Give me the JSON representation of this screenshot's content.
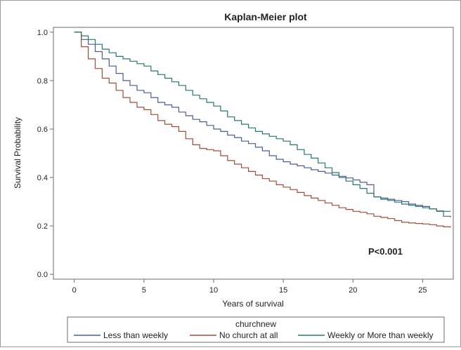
{
  "chart_data": {
    "type": "line",
    "title": "Kaplan-Meier plot",
    "xlabel": "Years of survival",
    "ylabel": "Survival Probability",
    "xlim": [
      -1.5,
      27.2
    ],
    "ylim": [
      -0.02,
      1.02
    ],
    "xticks": [
      0,
      5,
      10,
      15,
      20,
      25
    ],
    "yticks": [
      0.0,
      0.2,
      0.4,
      0.6,
      0.8,
      1.0
    ],
    "xtick_labels": [
      "0",
      "5",
      "10",
      "15",
      "20",
      "25"
    ],
    "ytick_labels": [
      "0.0",
      "0.2",
      "0.4",
      "0.6",
      "0.8",
      "1.0"
    ],
    "step": true,
    "annotation": "P<0.001",
    "legend_title": "churchnew",
    "legend_position": "bottom",
    "series": [
      {
        "name": "Less than weekly",
        "color": "#4a5aa8",
        "x": [
          0,
          0.5,
          1,
          1.5,
          2,
          2.5,
          3,
          3.5,
          4,
          4.5,
          5,
          5.5,
          6,
          6.5,
          7,
          7.5,
          8,
          8.5,
          9,
          9.5,
          10,
          10.5,
          11,
          11.5,
          12,
          12.5,
          13,
          13.5,
          14,
          14.5,
          15,
          15.5,
          16,
          16.5,
          17,
          17.5,
          18,
          18.5,
          19,
          19.5,
          20,
          20.5,
          21,
          21.5,
          22,
          22.5,
          23,
          23.5,
          24,
          24.5,
          25,
          25.5,
          26,
          26.5,
          27
        ],
        "y": [
          1.0,
          0.97,
          0.95,
          0.92,
          0.89,
          0.86,
          0.83,
          0.8,
          0.78,
          0.76,
          0.75,
          0.73,
          0.71,
          0.7,
          0.69,
          0.67,
          0.655,
          0.64,
          0.63,
          0.615,
          0.6,
          0.59,
          0.575,
          0.565,
          0.55,
          0.54,
          0.525,
          0.51,
          0.49,
          0.475,
          0.465,
          0.455,
          0.448,
          0.44,
          0.432,
          0.425,
          0.418,
          0.41,
          0.405,
          0.398,
          0.39,
          0.38,
          0.37,
          0.32,
          0.315,
          0.31,
          0.305,
          0.3,
          0.29,
          0.285,
          0.28,
          0.27,
          0.26,
          0.24,
          0.235
        ]
      },
      {
        "name": "No church at all",
        "color": "#a94a36",
        "x": [
          0,
          0.5,
          1,
          1.5,
          2,
          2.5,
          3,
          3.5,
          4,
          4.5,
          5,
          5.5,
          6,
          6.5,
          7,
          7.5,
          8,
          8.5,
          9,
          9.5,
          10,
          10.5,
          11,
          11.5,
          12,
          12.5,
          13,
          13.5,
          14,
          14.5,
          15,
          15.5,
          16,
          16.5,
          17,
          17.5,
          18,
          18.5,
          19,
          19.5,
          20,
          20.5,
          21,
          21.5,
          22,
          22.5,
          23,
          23.5,
          24,
          24.5,
          25,
          25.5,
          26,
          26.5,
          27
        ],
        "y": [
          1.0,
          0.94,
          0.89,
          0.85,
          0.81,
          0.79,
          0.76,
          0.73,
          0.71,
          0.69,
          0.68,
          0.66,
          0.635,
          0.62,
          0.61,
          0.59,
          0.56,
          0.535,
          0.52,
          0.515,
          0.51,
          0.49,
          0.47,
          0.455,
          0.44,
          0.425,
          0.41,
          0.395,
          0.385,
          0.37,
          0.36,
          0.35,
          0.338,
          0.325,
          0.315,
          0.305,
          0.295,
          0.285,
          0.275,
          0.268,
          0.26,
          0.256,
          0.25,
          0.24,
          0.235,
          0.23,
          0.222,
          0.215,
          0.212,
          0.21,
          0.208,
          0.205,
          0.2,
          0.196,
          0.193
        ]
      },
      {
        "name": "Weekly or More than weekly",
        "color": "#227a6a",
        "x": [
          0,
          0.5,
          1,
          1.5,
          2,
          2.5,
          3,
          3.5,
          4,
          4.5,
          5,
          5.5,
          6,
          6.5,
          7,
          7.5,
          8,
          8.5,
          9,
          9.5,
          10,
          10.5,
          11,
          11.5,
          12,
          12.5,
          13,
          13.5,
          14,
          14.5,
          15,
          15.5,
          16,
          16.5,
          17,
          17.5,
          18,
          18.5,
          19,
          19.5,
          20,
          20.5,
          21,
          21.5,
          22,
          22.5,
          23,
          23.5,
          24,
          24.5,
          25,
          25.5,
          26,
          26.5,
          27
        ],
        "y": [
          1.0,
          0.985,
          0.97,
          0.95,
          0.93,
          0.915,
          0.9,
          0.89,
          0.88,
          0.87,
          0.86,
          0.84,
          0.825,
          0.81,
          0.795,
          0.78,
          0.76,
          0.74,
          0.725,
          0.71,
          0.695,
          0.675,
          0.65,
          0.635,
          0.62,
          0.605,
          0.59,
          0.58,
          0.57,
          0.56,
          0.55,
          0.535,
          0.515,
          0.495,
          0.48,
          0.46,
          0.44,
          0.42,
          0.4,
          0.385,
          0.37,
          0.355,
          0.335,
          0.32,
          0.31,
          0.305,
          0.298,
          0.29,
          0.285,
          0.28,
          0.275,
          0.27,
          0.262,
          0.26,
          0.26
        ]
      }
    ]
  }
}
